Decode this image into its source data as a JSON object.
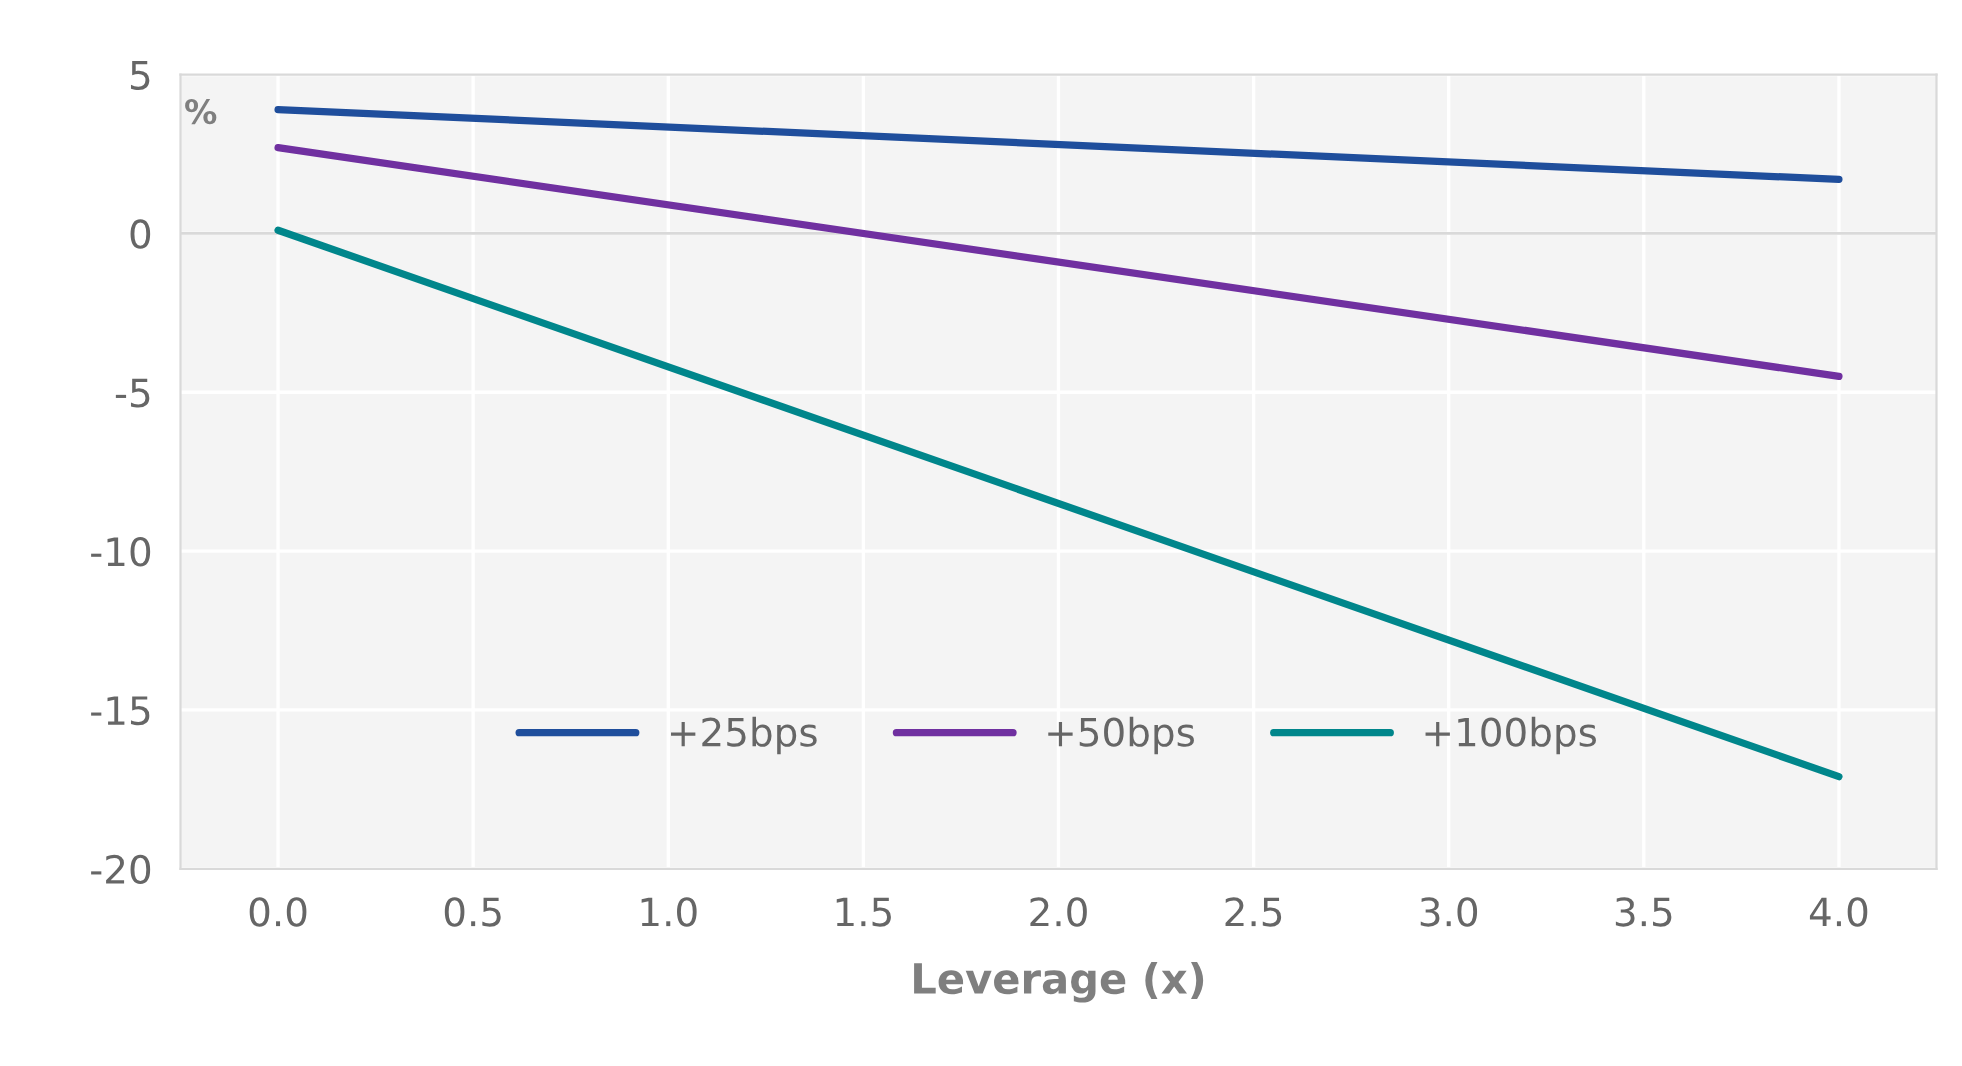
{
  "chart_data": {
    "type": "line",
    "xlabel": "Leverage (x)",
    "ylabel": "%",
    "x": [
      0,
      4
    ],
    "series": [
      {
        "name": "+25bps",
        "color": "#1f4e9c",
        "values": [
          3.9,
          1.7
        ]
      },
      {
        "name": "+50bps",
        "color": "#7030a0",
        "values": [
          2.7,
          -4.5
        ]
      },
      {
        "name": "+100bps",
        "color": "#00868b",
        "values": [
          0.1,
          -17.1
        ]
      }
    ],
    "xlim": [
      -0.25,
      4.25
    ],
    "xticks": [
      {
        "value": 0,
        "label": "0.0"
      },
      0.5,
      {
        "value": 1,
        "label": "1.0"
      },
      1.5,
      {
        "value": 2,
        "label": "2.0"
      },
      2.5,
      {
        "value": 3,
        "label": "3.0"
      },
      3.5,
      {
        "value": 4,
        "label": "4.0"
      }
    ],
    "ylim": [
      -20,
      5
    ],
    "yticks": [
      -20,
      -15,
      -10,
      -5,
      0,
      5
    ],
    "grid": true,
    "legend": "bottom",
    "marker": "none",
    "line_style": "solid"
  }
}
